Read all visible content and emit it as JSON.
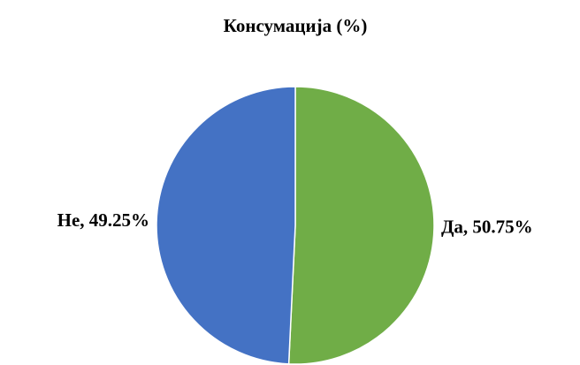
{
  "chart_data": {
    "type": "pie",
    "title": "Консумација (%)",
    "categories": [
      "Да",
      "Не"
    ],
    "values": [
      50.75,
      49.25
    ],
    "value_labels": [
      "Да, 50.75%",
      "Не, 49.25%"
    ],
    "colors": [
      "#70ad47",
      "#4472c4"
    ]
  }
}
